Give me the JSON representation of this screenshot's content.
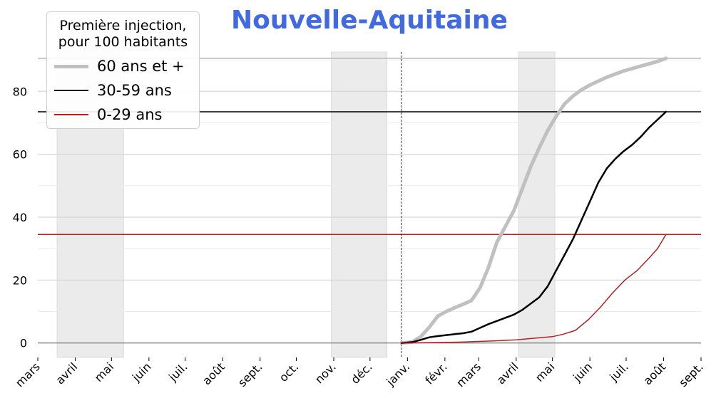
{
  "chart_data": {
    "type": "line",
    "title": "Nouvelle-Aquitaine",
    "title_color": "#4169e1",
    "legend_title": "Première injection, pour 100 habitants",
    "legend_title_lines": [
      "Première injection,",
      "pour 100 habitants"
    ],
    "legend_position": "top-left",
    "grid": true,
    "xlabel": "",
    "ylabel": "",
    "x_range": [
      "2020-03-01",
      "2021-09-01"
    ],
    "ylim": [
      -4.6,
      95
    ],
    "y_ticks": [
      0,
      20,
      40,
      60,
      80
    ],
    "x_tick_dates": [
      "2020-03-01",
      "2020-04-01",
      "2020-05-01",
      "2020-06-01",
      "2020-07-01",
      "2020-08-01",
      "2020-09-01",
      "2020-10-01",
      "2020-11-01",
      "2020-12-01",
      "2021-01-01",
      "2021-02-01",
      "2021-03-01",
      "2021-04-01",
      "2021-05-01",
      "2021-06-01",
      "2021-07-01",
      "2021-08-01",
      "2021-09-01"
    ],
    "x_tick_labels": [
      "mars",
      "avril",
      "mai",
      "juin",
      "juil.",
      "août",
      "sept.",
      "oct.",
      "nov.",
      "déc.",
      "janv.",
      "févr.",
      "mars",
      "avril",
      "mai",
      "juin",
      "juil.",
      "août",
      "sept."
    ],
    "shaded_periods": [
      {
        "start": "2020-03-17",
        "end": "2020-05-11"
      },
      {
        "start": "2020-10-30",
        "end": "2020-12-15"
      },
      {
        "start": "2021-04-03",
        "end": "2021-05-03"
      }
    ],
    "vertical_marker": "2020-12-27",
    "series": [
      {
        "name": "60 ans et +",
        "color": "#c0c0c0",
        "line_width": 5,
        "reference_line": 90.5,
        "x": [
          "2020-12-27",
          "2021-01-05",
          "2021-01-12",
          "2021-01-19",
          "2021-01-26",
          "2021-02-02",
          "2021-02-09",
          "2021-02-16",
          "2021-02-23",
          "2021-03-02",
          "2021-03-09",
          "2021-03-16",
          "2021-03-23",
          "2021-03-30",
          "2021-04-06",
          "2021-04-13",
          "2021-04-20",
          "2021-04-27",
          "2021-05-04",
          "2021-05-11",
          "2021-05-18",
          "2021-05-25",
          "2021-06-01",
          "2021-06-15",
          "2021-06-29",
          "2021-07-13",
          "2021-07-27",
          "2021-08-03"
        ],
        "y": [
          0,
          0.3,
          2,
          5,
          8.5,
          10,
          11.2,
          12.3,
          13.5,
          17.5,
          24,
          32,
          37,
          42,
          49,
          56,
          62,
          67.5,
          72,
          76,
          78.5,
          80.5,
          82,
          84.5,
          86.5,
          88,
          89.5,
          90.5
        ]
      },
      {
        "name": "30-59 ans",
        "color": "#000000",
        "line_width": 2.5,
        "reference_line": 73.5,
        "x": [
          "2020-12-27",
          "2021-01-05",
          "2021-01-12",
          "2021-01-19",
          "2021-01-26",
          "2021-02-02",
          "2021-02-09",
          "2021-02-16",
          "2021-02-23",
          "2021-03-02",
          "2021-03-09",
          "2021-03-16",
          "2021-03-23",
          "2021-03-30",
          "2021-04-06",
          "2021-04-13",
          "2021-04-20",
          "2021-04-27",
          "2021-05-04",
          "2021-05-11",
          "2021-05-18",
          "2021-05-25",
          "2021-06-01",
          "2021-06-08",
          "2021-06-15",
          "2021-06-22",
          "2021-06-29",
          "2021-07-06",
          "2021-07-13",
          "2021-07-20",
          "2021-07-27",
          "2021-08-03"
        ],
        "y": [
          0,
          0.3,
          1.0,
          1.8,
          2.2,
          2.5,
          2.8,
          3.1,
          3.6,
          4.8,
          6.0,
          7.0,
          8.0,
          9.0,
          10.5,
          12.5,
          14.5,
          18,
          23,
          28,
          33,
          39,
          45,
          51,
          55.5,
          58.5,
          61,
          63,
          65.5,
          68.5,
          71,
          73.5
        ]
      },
      {
        "name": "0-29 ans",
        "color": "#b22222",
        "line_width": 1.5,
        "reference_line": 34.5,
        "x": [
          "2020-12-27",
          "2021-01-15",
          "2021-02-01",
          "2021-02-15",
          "2021-03-01",
          "2021-03-15",
          "2021-04-01",
          "2021-04-15",
          "2021-05-01",
          "2021-05-10",
          "2021-05-20",
          "2021-05-31",
          "2021-06-10",
          "2021-06-20",
          "2021-06-30",
          "2021-07-10",
          "2021-07-20",
          "2021-07-27",
          "2021-08-03"
        ],
        "y": [
          0,
          0.1,
          0.2,
          0.3,
          0.5,
          0.7,
          1.0,
          1.5,
          2.0,
          2.8,
          4.0,
          7.5,
          11.5,
          16,
          20,
          23,
          27,
          30,
          34.5
        ]
      }
    ]
  }
}
